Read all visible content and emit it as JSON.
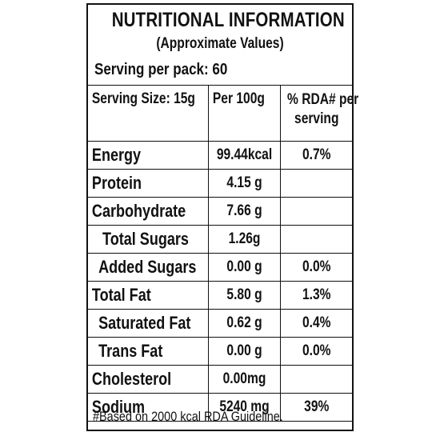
{
  "title": "NUTRITIONAL INFORMATION",
  "subtitle": "(Approximate Values)",
  "serving_per_pack": "Serving per pack: 60",
  "header": {
    "serving_size": "Serving Size: 15g",
    "per100g": "Per 100g",
    "rda_line1": "% RDA# per",
    "rda_line2": "serving"
  },
  "rows": [
    {
      "name": "Energy",
      "per100g": "99.44kcal",
      "rda": "0.7%"
    },
    {
      "name": "Protein",
      "per100g": "4.15 g",
      "rda": ""
    },
    {
      "name": "Carbohydrate",
      "per100g": "7.66 g",
      "rda": ""
    },
    {
      "name": "Total Sugars",
      "per100g": "1.26g",
      "rda": ""
    },
    {
      "name": "Added Sugars",
      "per100g": "0.00 g",
      "rda": "0.0%"
    },
    {
      "name": "Total Fat",
      "per100g": "5.80 g",
      "rda": "1.3%"
    },
    {
      "name": "Saturated Fat",
      "per100g": "0.62 g",
      "rda": "0.4%"
    },
    {
      "name": "Trans Fat",
      "per100g": "0.00 g",
      "rda": "0.0%"
    },
    {
      "name": "Cholesterol",
      "per100g": "0.00mg",
      "rda": ""
    },
    {
      "name": "Sodium",
      "per100g": "5240 mg",
      "rda": "39%"
    }
  ],
  "footnote": "#Based on 2000 kcal RDA Guideline."
}
